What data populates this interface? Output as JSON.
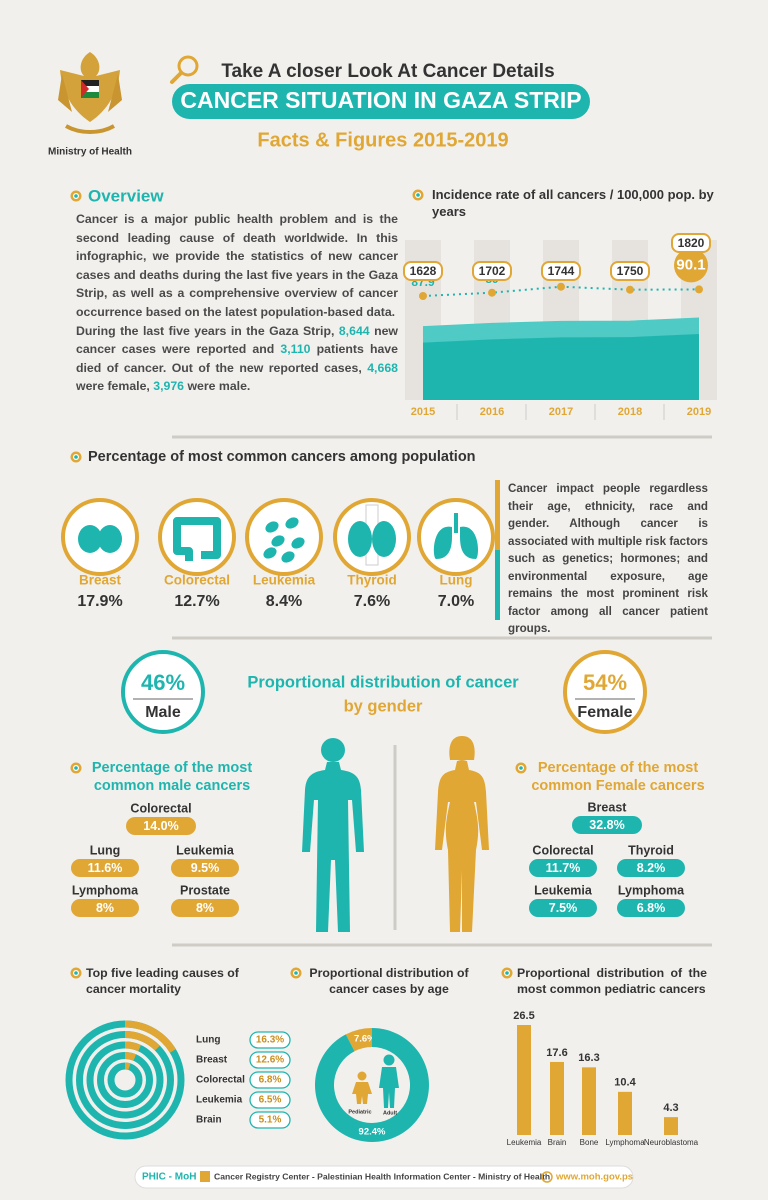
{
  "header": {
    "ministry": "Ministry of Health",
    "kicker": "Take A closer Look At Cancer Details",
    "title": "CANCER SITUATION IN GAZA STRIP",
    "subtitle": "Facts & Figures 2015-2019"
  },
  "overview": {
    "heading": "Overview",
    "paragraph_1": "Cancer is a major public health problem and is the second leading cause of death worldwide. In this infographic, we provide the statistics of new cancer cases and deaths during the last five years in the Gaza Strip, as well as a comprehensive overview of cancer occurrence based on the latest population-based data.",
    "paragraph_2": [
      "During the last five years in the Gaza Strip, ",
      "8,644",
      " new cancer cases were reported and ",
      "3,110",
      " patients have died of cancer. Out of the new reported cases, ",
      "4,668",
      " were female, ",
      "3,976",
      " were male."
    ]
  },
  "common_cancers": {
    "heading": "Percentage of most common cancers among population",
    "items": [
      {
        "name": "Breast",
        "value": "17.9%"
      },
      {
        "name": "Colorectal",
        "value": "12.7%"
      },
      {
        "name": "Leukemia",
        "value": "8.4%"
      },
      {
        "name": "Thyroid",
        "value": "7.6%"
      },
      {
        "name": "Lung",
        "value": "7.0%"
      }
    ],
    "note": "Cancer impact people regardless their age, ethnicity, race and gender. Although cancer is associated with multiple risk factors such as genetics; hormones; and environmental exposure, age remains the most prominent risk factor among all cancer patient groups."
  },
  "gender": {
    "title": [
      "Proportional distribution of cancer",
      "by gender"
    ],
    "male": {
      "value": "46%",
      "label": "Male"
    },
    "female": {
      "value": "54%",
      "label": "Female"
    }
  },
  "male_cancers": {
    "heading": "Percentage of the most common male cancers",
    "items": [
      {
        "name": "Colorectal",
        "value": "14.0%"
      },
      {
        "name": "Lung",
        "value": "11.6%"
      },
      {
        "name": "Leukemia",
        "value": "9.5%"
      },
      {
        "name": "Lymphoma",
        "value": "8%"
      },
      {
        "name": "Prostate",
        "value": "8%"
      }
    ]
  },
  "female_cancers": {
    "heading": "Percentage of the most common Female cancers",
    "items": [
      {
        "name": "Breast",
        "value": "32.8%"
      },
      {
        "name": "Colorectal",
        "value": "11.7%"
      },
      {
        "name": "Thyroid",
        "value": "8.2%"
      },
      {
        "name": "Leukemia",
        "value": "7.5%"
      },
      {
        "name": "Lymphoma",
        "value": "6.8%"
      }
    ]
  },
  "chart_data": [
    {
      "type": "area",
      "title": "Incidence rate of all cancers / 100,000 pop. by years",
      "categories": [
        "2015",
        "2016",
        "2017",
        "2018",
        "2019"
      ],
      "series": [
        {
          "type": "area",
          "color": "#1fb5af",
          "values": [
            1628,
            1702,
            1744,
            1750,
            1820
          ]
        },
        {
          "type": "line",
          "color": "#e0a735",
          "values": [
            87.9,
            89,
            91,
            90,
            90.1
          ]
        }
      ]
    },
    {
      "type": "rings",
      "title": "Top five leading causes of cancer mortality",
      "categories": [
        "Lung",
        "Breast",
        "Colorectal",
        "Leukemia",
        "Brain"
      ],
      "values": [
        16.3,
        12.6,
        6.8,
        6.5,
        5.1
      ],
      "value_labels": [
        "16.3%",
        "12.6%",
        "6.8%",
        "6.5%",
        "5.1%"
      ],
      "color": "#e0a735"
    },
    {
      "type": "donut",
      "title": "Proportional distribution of cancer cases by age",
      "categories": [
        "Pediatric",
        "Adult"
      ],
      "values": [
        7.6,
        92.4
      ],
      "value_labels": [
        "7.6%",
        "92.4%"
      ],
      "colors": [
        "#e0a735",
        "#1fb5af"
      ]
    },
    {
      "type": "bar",
      "title": "Proportional distribution of the most common pediatric cancers",
      "categories": [
        "Leukemia",
        "Brain",
        "Bone",
        "Lymphoma",
        "Neuroblastoma"
      ],
      "values": [
        26.5,
        17.6,
        16.3,
        10.4,
        4.3
      ],
      "color": "#e0a735"
    }
  ],
  "footer": {
    "brand": "PHIC - MoH",
    "text": "Cancer Registry Center - Palestinian Health Information Center - Ministry of Health",
    "url": "www.moh.gov.ps"
  }
}
